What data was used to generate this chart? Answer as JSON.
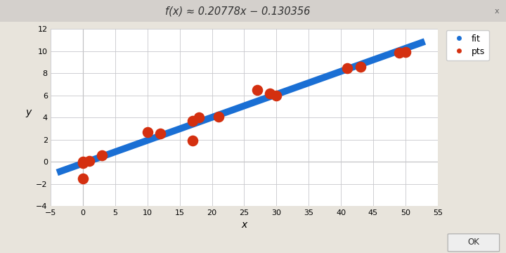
{
  "slope": 0.20778,
  "intercept": -0.130356,
  "pts_x": [
    0,
    0,
    0,
    1,
    3,
    10,
    12,
    17,
    17,
    18,
    21,
    27,
    29,
    30,
    41,
    43,
    49,
    50
  ],
  "pts_y": [
    0,
    -0.1,
    -1.5,
    0.1,
    0.6,
    2.7,
    2.55,
    1.9,
    3.7,
    4.0,
    4.1,
    6.5,
    6.2,
    6.0,
    8.5,
    8.6,
    9.85,
    9.9
  ],
  "fit_x_min": -4,
  "fit_x_max": 53,
  "xlim": [
    -5,
    55
  ],
  "ylim": [
    -4,
    12
  ],
  "xticks": [
    -5,
    0,
    5,
    10,
    15,
    20,
    25,
    30,
    35,
    40,
    45,
    50,
    55
  ],
  "yticks": [
    -4,
    -2,
    0,
    2,
    4,
    6,
    8,
    10,
    12
  ],
  "xlabel": "x",
  "ylabel": "y",
  "title": "f(x) ≈ 0.20778x − 0.130356",
  "fit_color": "#1a6fd4",
  "pts_color": "#d43010",
  "fit_linewidth": 7.0,
  "pts_markersize": 6,
  "plot_bg": "#FFFFFF",
  "outer_bg": "#E8E4DC",
  "title_bar_color": "#D4D0CC",
  "grid_color": "#C8C8CC",
  "axis_line_color": "#999999",
  "tick_fontsize": 8,
  "legend_fontsize": 9
}
